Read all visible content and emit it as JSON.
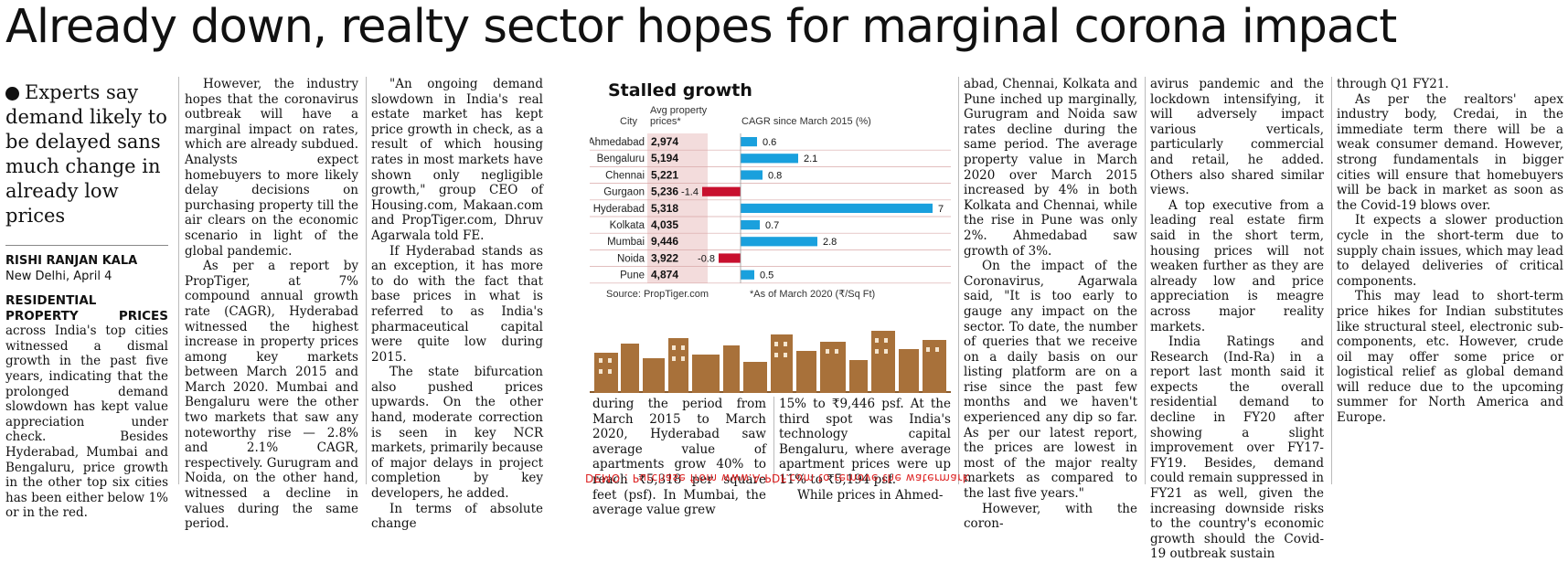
{
  "headline": "Already down, realty sector hopes for marginal corona impact",
  "kicker": "Experts say demand likely to be delayed sans much change in already low prices",
  "byline": "RISHI RANJAN KALA",
  "dateline": "New Delhi, April 4",
  "col1": {
    "lead": "RESIDENTIAL PROPERTY PRICES",
    "text": " across India's top cities witnessed a dismal growth in the past five years, indicating that the prolonged demand slowdown has kept value appreciation under check. Besides Hyderabad, Mumbai and Bengaluru, price growth in the other top six cities has been either below 1% or in the red."
  },
  "col2": [
    "However, the industry hopes that the coronavirus outbreak will have a marginal impact on rates, which are already subdued. Analysts expect homebuyers to more likely delay decisions on purchasing property till the air clears on the economic scenario in light of the global pandemic.",
    "As per a report by PropTiger, at 7% compound annual growth rate (CAGR), Hyderabad witnessed the highest increase in property prices among key markets between March 2015 and March 2020. Mumbai and Bengaluru were the other two markets that saw any noteworthy rise — 2.8% and 2.1% CAGR, respectively. Gurugram and Noida, on the other hand, witnessed a decline in values during the same period."
  ],
  "col3": [
    "\"An ongoing demand slowdown in India's real estate market has kept price growth in check, as a result of which housing rates in most markets have shown only negligible growth,\" group CEO of Housing.com, Makaan.com and PropTiger.com, Dhruv Agarwala told FE.",
    "If Hyderabad stands as an exception, it has more to do with the fact that base prices in what is referred to as India's pharmaceutical capital were quite low during 2015.",
    "The state bifurcation also pushed prices upwards. On the other hand, moderate correction is seen in key NCR markets, primarily because of major delays in project completion by key developers, he added.",
    "In terms of absolute change"
  ],
  "col4": "during the period from March 2015 to March 2020, Hyderabad saw average value of apartments grow 40% to reach ₹5,318 per square feet (psf). In Mumbai, the average value grew",
  "col5": "15% to ₹9,446 psf. At the third spot was India's technology capital Bengaluru, where average apartment prices were up 11% to ₹5,194 psf.",
  "col5b": "While prices in Ahmed-",
  "col6": [
    "abad, Chennai, Kolkata and Pune inched up marginally, Gurugram and Noida saw rates decline during the same period. The average property value in March 2020 over March 2015 increased by 4% in both Kolkata and Chennai, while the rise in Pune was only 2%. Ahmedabad saw growth of 3%.",
    "On the impact of the Coronavirus, Agarwala said, \"It is too early to gauge any impact on the sector. To date, the number of queries that we receive on a daily basis on our listing platform are on a rise since the past few months and we haven't experienced any dip so far. As per our latest report, the prices are lowest in most of the major realty markets as compared to the last five years.\"",
    "However, with the coron-"
  ],
  "col7": [
    "avirus pandemic and the lockdown intensifying, it will adversely impact various verticals, particularly commercial and retail, he added. Others also shared similar views.",
    "A top executive from a leading real estate firm said in the short term, housing prices will not weaken further as they are already low and price appreciation is meagre across major reality markets.",
    "India Ratings and Research (Ind-Ra) in a report last month said it expects the overall residential demand to decline in FY20 after showing a slight improvement over FY17-FY19. Besides, demand could remain suppressed in FY21 as well, given the increasing downside risks to the country's economic growth should the Covid-19 outbreak sustain"
  ],
  "col8": [
    "through Q1 FY21.",
    "As per the realtors' apex industry body, Credai, in the immediate term there will be a weak consumer demand. However, strong fundamentals in bigger cities will ensure that homebuyers will be back in market as soon as the Covid-19 blows over.",
    "It expects a slower production cycle in the short-term due to supply chain issues, which may lead to delayed deliveries of critical components.",
    "This may lead to short-term price hikes for Indian substitutes like structural steel, electronic sub-components, etc. However, crude oil may offer some price or logistical relief as global demand will reduce due to the upcoming summer for North America and Europe."
  ],
  "chart_data": {
    "type": "bar",
    "title": "Stalled growth",
    "col_city": "City",
    "col_price": "Avg property prices*",
    "col_cagr": "CAGR since March 2015 (%)",
    "categories": [
      "Ahmedabad",
      "Bengaluru",
      "Chennai",
      "Gurgaon",
      "Hyderabad",
      "Kolkata",
      "Mumbai",
      "Noida",
      "Pune"
    ],
    "prices": [
      "2,974",
      "5,194",
      "5,221",
      "5,236",
      "5,318",
      "4,035",
      "9,446",
      "3,922",
      "4,874"
    ],
    "values": [
      0.6,
      2.1,
      0.8,
      -1.4,
      7,
      0.7,
      2.8,
      -0.8,
      0.5
    ],
    "value_labels": [
      "0.6",
      "2.1",
      "0.8",
      "-1.4",
      "7",
      "0.7",
      "2.8",
      "-0.8",
      "0.5"
    ],
    "source": "Source: PropTiger.com",
    "footnote": "*As of March 2020 (₹/Sq Ft)",
    "colors": {
      "positive": "#1aa0dd",
      "negative": "#c8102e",
      "price_bg": "#f3dcdc",
      "row_line": "#d9a9a9"
    }
  },
  "watermark": "DEMO : Purchase from www.A-PDF.com to remove the watermark"
}
